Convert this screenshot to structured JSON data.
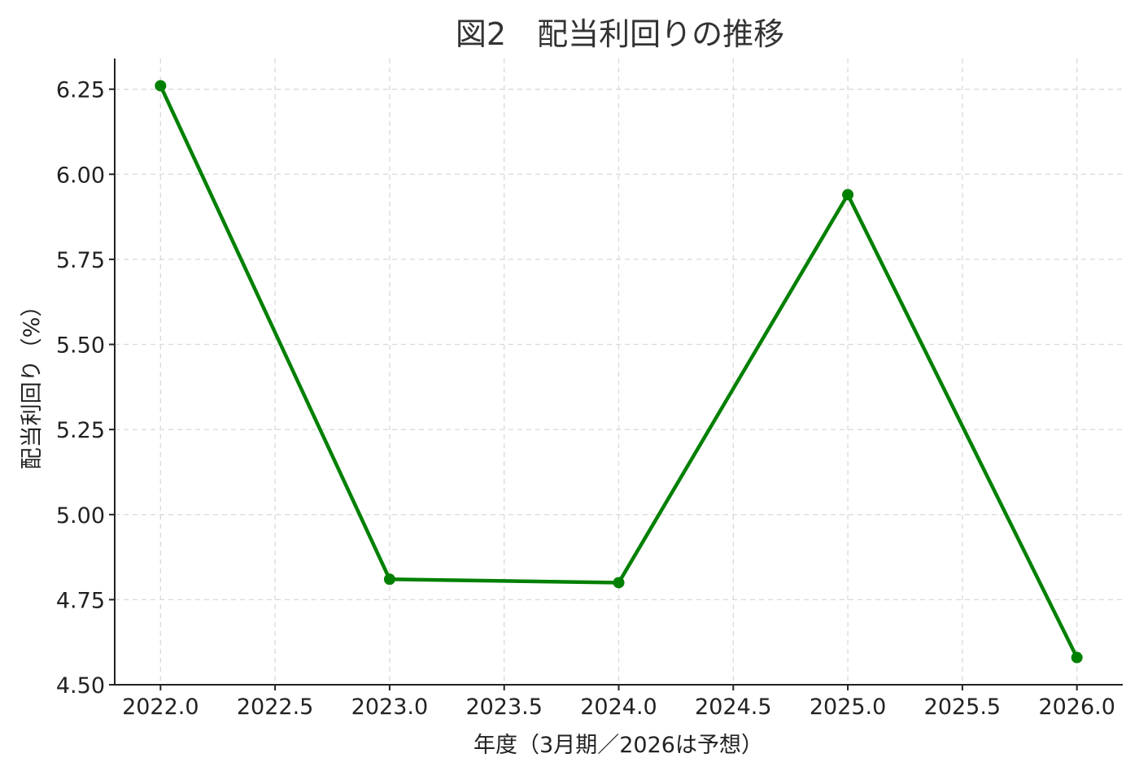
{
  "chart_data": {
    "type": "line",
    "title": "図2　配当利回りの推移",
    "xlabel": "年度（3月期／2026は予想）",
    "ylabel": "配当利回り（%）",
    "x": [
      2022,
      2023,
      2024,
      2025,
      2026
    ],
    "series": [
      {
        "values": [
          6.26,
          4.81,
          4.8,
          5.94,
          4.58
        ],
        "color": "#008000"
      }
    ],
    "xlim": [
      2021.8,
      2026.2
    ],
    "ylim": [
      4.5,
      6.34
    ],
    "xticks": [
      2022.0,
      2022.5,
      2023.0,
      2023.5,
      2024.0,
      2024.5,
      2025.0,
      2025.5,
      2026.0
    ],
    "xtick_labels": [
      "2022.0",
      "2022.5",
      "2023.0",
      "2023.5",
      "2024.0",
      "2024.5",
      "2025.0",
      "2025.5",
      "2026.0"
    ],
    "yticks": [
      4.5,
      4.75,
      5.0,
      5.25,
      5.5,
      5.75,
      6.0,
      6.25
    ],
    "ytick_labels": [
      "4.50",
      "4.75",
      "5.00",
      "5.25",
      "5.50",
      "5.75",
      "6.00",
      "6.25"
    ],
    "grid": true,
    "marker": "circle"
  }
}
